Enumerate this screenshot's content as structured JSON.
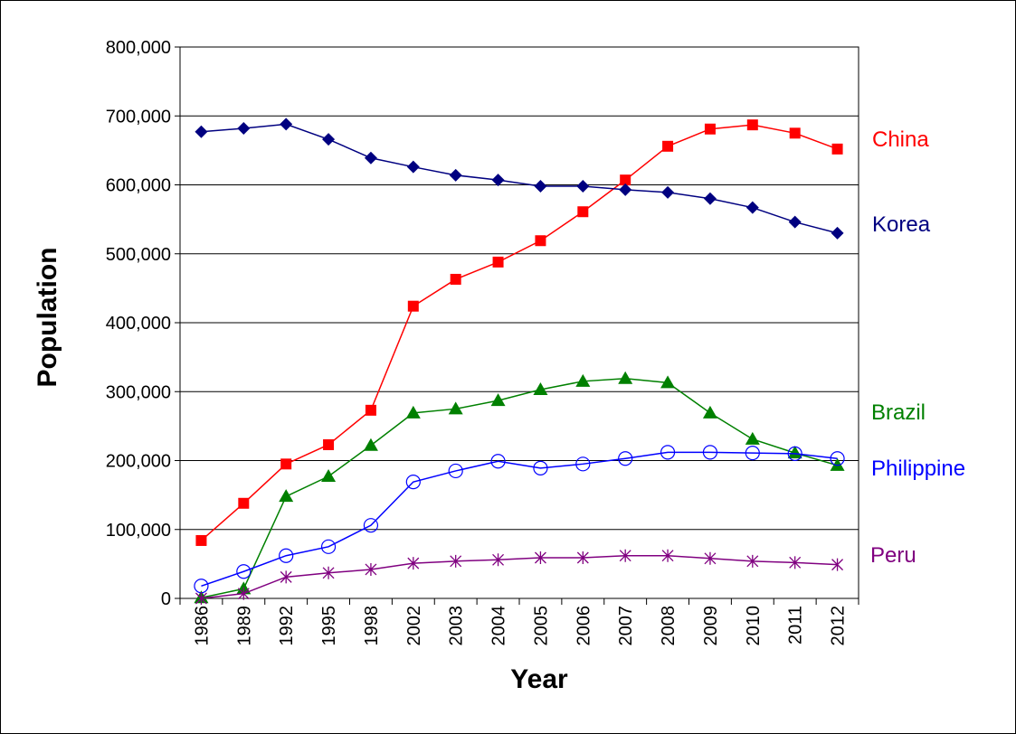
{
  "chart_data": {
    "type": "line",
    "title": "",
    "xlabel": "Year",
    "ylabel": "Population",
    "ylim": [
      0,
      800000
    ],
    "yticks": [
      0,
      100000,
      200000,
      300000,
      400000,
      500000,
      600000,
      700000,
      800000
    ],
    "ytick_labels": [
      "0",
      "100,000",
      "200,000",
      "300,000",
      "400,000",
      "500,000",
      "600,000",
      "700,000",
      "800,000"
    ],
    "grid": true,
    "legend": "right (inline labels)",
    "categories": [
      "1986",
      "1989",
      "1992",
      "1995",
      "1998",
      "2002",
      "2003",
      "2004",
      "2005",
      "2006",
      "2007",
      "2008",
      "2009",
      "2010",
      "2011",
      "2012"
    ],
    "series": [
      {
        "name": "China",
        "color": "#ff0000",
        "marker": "square",
        "values": [
          84000,
          138000,
          195000,
          223000,
          273000,
          424000,
          463000,
          488000,
          519000,
          561000,
          607000,
          656000,
          681000,
          687000,
          675000,
          652000
        ]
      },
      {
        "name": "Korea",
        "color": "#000080",
        "marker": "diamond",
        "values": [
          677000,
          682000,
          688000,
          666000,
          639000,
          626000,
          614000,
          607000,
          598000,
          598000,
          593000,
          589000,
          580000,
          567000,
          546000,
          530000
        ]
      },
      {
        "name": "Brazil",
        "color": "#008000",
        "marker": "triangle",
        "values": [
          1000,
          14000,
          148000,
          177000,
          222000,
          269000,
          275000,
          287000,
          303000,
          315000,
          319000,
          313000,
          269000,
          231000,
          211000,
          193000
        ]
      },
      {
        "name": "Philippine",
        "color": "#0000ff",
        "marker": "circle-open",
        "values": [
          18000,
          39000,
          62000,
          75000,
          106000,
          169000,
          185000,
          199000,
          189000,
          195000,
          203000,
          212000,
          212000,
          211000,
          210000,
          203000
        ]
      },
      {
        "name": "Peru",
        "color": "#800080",
        "marker": "asterisk",
        "values": [
          0,
          7000,
          31000,
          37000,
          42000,
          51000,
          54000,
          56000,
          59000,
          59000,
          62000,
          62000,
          58000,
          54000,
          52000,
          49000
        ]
      }
    ]
  }
}
